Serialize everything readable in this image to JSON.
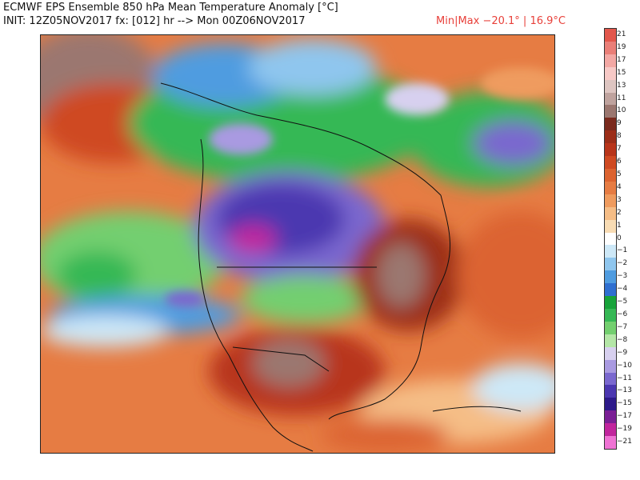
{
  "header": {
    "title": "ECMWF EPS Ensemble 850 hPa Mean Temperature Anomaly [°C]",
    "init_line": "INIT: 12Z05NOV2017  fx: [012] hr --> Mon 00Z06NOV2017",
    "minmax": "Min|Max −20.1° | 16.9°C"
  },
  "colors": {
    "frame": "#222222",
    "minmax_text": "#e8403a"
  },
  "colorbar": {
    "labels": [
      "21",
      "19",
      "17",
      "15",
      "13",
      "11",
      "10",
      "9",
      "8",
      "7",
      "6",
      "5",
      "4",
      "3",
      "2",
      "1",
      "0",
      "−1",
      "−2",
      "−3",
      "−4",
      "−5",
      "−6",
      "−7",
      "−8",
      "−9",
      "−10",
      "−11",
      "−13",
      "−15",
      "−17",
      "−19",
      "−21"
    ],
    "colors": [
      "#e2574c",
      "#ea7f78",
      "#f3a8a4",
      "#f7c9c6",
      "#ddc5c1",
      "#bfa39e",
      "#9b7770",
      "#7a2a1e",
      "#9c2e18",
      "#b8351a",
      "#cf4a22",
      "#dc6330",
      "#e67c43",
      "#ef9b5e",
      "#f5bd86",
      "#f8dcb4",
      "#ffffff",
      "#cde8f7",
      "#8fc6ee",
      "#4f9ce0",
      "#2f6fd0",
      "#17a33a",
      "#36b855",
      "#73cf6f",
      "#b4e6a7",
      "#d7d0ef",
      "#a99ae1",
      "#7a68cf",
      "#4b37b0",
      "#2d1a8a",
      "#7a1f95",
      "#c1259d",
      "#ef73d4"
    ]
  }
}
